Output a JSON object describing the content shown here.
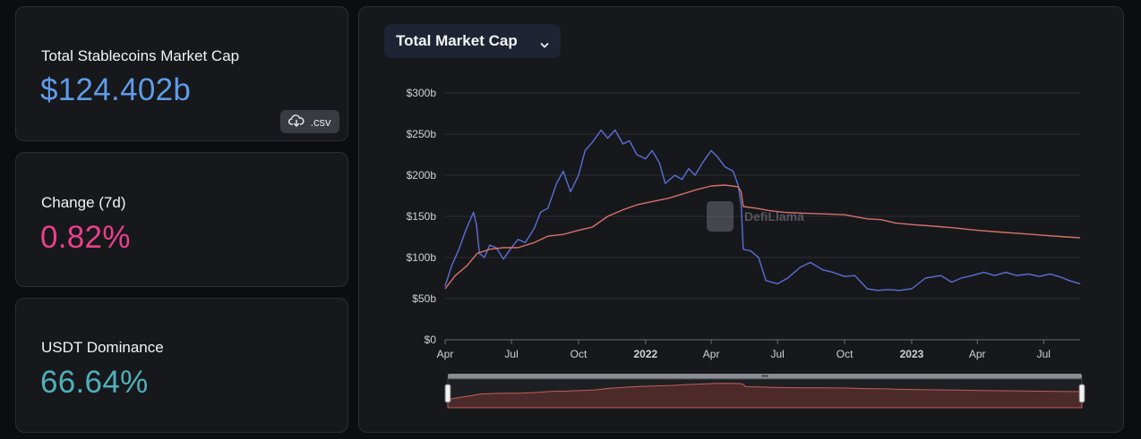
{
  "stats": {
    "market_cap": {
      "label": "Total Stablecoins Market Cap",
      "value": "$124.402b",
      "color": "#5f9be8"
    },
    "change": {
      "label": "Change (7d)",
      "value": "0.82%",
      "color": "#e8408c"
    },
    "dominance": {
      "label": "USDT Dominance",
      "value": "66.64%",
      "color": "#4fb0bb"
    }
  },
  "csv_button": {
    "label": ".csv",
    "icon": "cloud-download-icon"
  },
  "chart_selector": {
    "label": "Total Market Cap",
    "icon": "chevron-down-icon"
  },
  "watermark": "DefiLlama",
  "chart_data": {
    "type": "line",
    "title": "",
    "x_ticks": [
      {
        "label": "Apr",
        "date": "2021-04-01",
        "bold": false
      },
      {
        "label": "Jul",
        "date": "2021-07-01",
        "bold": false
      },
      {
        "label": "Oct",
        "date": "2021-10-01",
        "bold": false
      },
      {
        "label": "2022",
        "date": "2022-01-01",
        "bold": true
      },
      {
        "label": "Apr",
        "date": "2022-04-01",
        "bold": false
      },
      {
        "label": "Jul",
        "date": "2022-07-01",
        "bold": false
      },
      {
        "label": "Oct",
        "date": "2022-10-01",
        "bold": false
      },
      {
        "label": "2023",
        "date": "2023-01-01",
        "bold": true
      },
      {
        "label": "Apr",
        "date": "2023-04-01",
        "bold": false
      },
      {
        "label": "Jul",
        "date": "2023-07-01",
        "bold": false
      }
    ],
    "y_ticks": [
      "$0",
      "$50b",
      "$100b",
      "$150b",
      "$200b",
      "$250b",
      "$300b"
    ],
    "ylim": [
      0,
      300
    ],
    "xlim": [
      "2021-04-01",
      "2023-08-20"
    ],
    "grid": true,
    "series": [
      {
        "color": "#5b6fd6",
        "points": [
          [
            "2021-04-01",
            65
          ],
          [
            "2021-04-10",
            90
          ],
          [
            "2021-04-20",
            110
          ],
          [
            "2021-04-28",
            130
          ],
          [
            "2021-05-05",
            145
          ],
          [
            "2021-05-10",
            155
          ],
          [
            "2021-05-14",
            140
          ],
          [
            "2021-05-18",
            105
          ],
          [
            "2021-05-25",
            100
          ],
          [
            "2021-06-01",
            115
          ],
          [
            "2021-06-10",
            112
          ],
          [
            "2021-06-20",
            98
          ],
          [
            "2021-07-01",
            112
          ],
          [
            "2021-07-10",
            122
          ],
          [
            "2021-07-20",
            118
          ],
          [
            "2021-08-01",
            135
          ],
          [
            "2021-08-10",
            155
          ],
          [
            "2021-08-20",
            160
          ],
          [
            "2021-09-01",
            190
          ],
          [
            "2021-09-10",
            205
          ],
          [
            "2021-09-20",
            180
          ],
          [
            "2021-10-01",
            200
          ],
          [
            "2021-10-10",
            230
          ],
          [
            "2021-10-20",
            240
          ],
          [
            "2021-11-01",
            255
          ],
          [
            "2021-11-10",
            245
          ],
          [
            "2021-11-20",
            255
          ],
          [
            "2021-12-01",
            238
          ],
          [
            "2021-12-10",
            242
          ],
          [
            "2021-12-20",
            225
          ],
          [
            "2022-01-01",
            220
          ],
          [
            "2022-01-10",
            230
          ],
          [
            "2022-01-20",
            215
          ],
          [
            "2022-01-28",
            190
          ],
          [
            "2022-02-10",
            200
          ],
          [
            "2022-02-20",
            195
          ],
          [
            "2022-03-01",
            208
          ],
          [
            "2022-03-10",
            200
          ],
          [
            "2022-03-20",
            215
          ],
          [
            "2022-04-01",
            230
          ],
          [
            "2022-04-10",
            222
          ],
          [
            "2022-04-20",
            210
          ],
          [
            "2022-05-01",
            205
          ],
          [
            "2022-05-08",
            188
          ],
          [
            "2022-05-12",
            165
          ],
          [
            "2022-05-15",
            110
          ],
          [
            "2022-05-25",
            108
          ],
          [
            "2022-06-05",
            100
          ],
          [
            "2022-06-15",
            72
          ],
          [
            "2022-07-01",
            68
          ],
          [
            "2022-07-15",
            75
          ],
          [
            "2022-08-01",
            88
          ],
          [
            "2022-08-15",
            94
          ],
          [
            "2022-09-01",
            85
          ],
          [
            "2022-09-15",
            82
          ],
          [
            "2022-10-01",
            77
          ],
          [
            "2022-10-15",
            78
          ],
          [
            "2022-11-01",
            62
          ],
          [
            "2022-11-15",
            60
          ],
          [
            "2022-12-01",
            61
          ],
          [
            "2022-12-15",
            60
          ],
          [
            "2023-01-01",
            62
          ],
          [
            "2023-01-20",
            75
          ],
          [
            "2023-02-10",
            78
          ],
          [
            "2023-02-25",
            70
          ],
          [
            "2023-03-10",
            75
          ],
          [
            "2023-03-25",
            78
          ],
          [
            "2023-04-10",
            82
          ],
          [
            "2023-04-25",
            78
          ],
          [
            "2023-05-10",
            82
          ],
          [
            "2023-05-25",
            78
          ],
          [
            "2023-06-10",
            80
          ],
          [
            "2023-06-25",
            77
          ],
          [
            "2023-07-10",
            80
          ],
          [
            "2023-07-25",
            76
          ],
          [
            "2023-08-05",
            72
          ],
          [
            "2023-08-20",
            68
          ]
        ]
      },
      {
        "color": "#d6726b",
        "points": [
          [
            "2021-04-01",
            62
          ],
          [
            "2021-04-15",
            78
          ],
          [
            "2021-05-01",
            90
          ],
          [
            "2021-05-15",
            105
          ],
          [
            "2021-06-01",
            110
          ],
          [
            "2021-06-20",
            112
          ],
          [
            "2021-07-10",
            112
          ],
          [
            "2021-08-01",
            118
          ],
          [
            "2021-08-20",
            126
          ],
          [
            "2021-09-10",
            128
          ],
          [
            "2021-10-01",
            133
          ],
          [
            "2021-10-20",
            137
          ],
          [
            "2021-11-10",
            150
          ],
          [
            "2021-12-01",
            158
          ],
          [
            "2021-12-20",
            164
          ],
          [
            "2022-01-10",
            168
          ],
          [
            "2022-02-01",
            172
          ],
          [
            "2022-02-20",
            177
          ],
          [
            "2022-03-10",
            182
          ],
          [
            "2022-04-01",
            187
          ],
          [
            "2022-04-20",
            188
          ],
          [
            "2022-05-08",
            186
          ],
          [
            "2022-05-12",
            180
          ],
          [
            "2022-05-15",
            162
          ],
          [
            "2022-06-01",
            160
          ],
          [
            "2022-06-20",
            157
          ],
          [
            "2022-07-10",
            155
          ],
          [
            "2022-08-01",
            154
          ],
          [
            "2022-09-01",
            153
          ],
          [
            "2022-10-01",
            152
          ],
          [
            "2022-11-01",
            147
          ],
          [
            "2022-11-20",
            146
          ],
          [
            "2022-12-10",
            142
          ],
          [
            "2023-01-01",
            140
          ],
          [
            "2023-02-01",
            138
          ],
          [
            "2023-03-01",
            136
          ],
          [
            "2023-04-01",
            133
          ],
          [
            "2023-05-01",
            131
          ],
          [
            "2023-06-01",
            129
          ],
          [
            "2023-07-01",
            127
          ],
          [
            "2023-08-01",
            125
          ],
          [
            "2023-08-20",
            124
          ]
        ]
      }
    ]
  }
}
